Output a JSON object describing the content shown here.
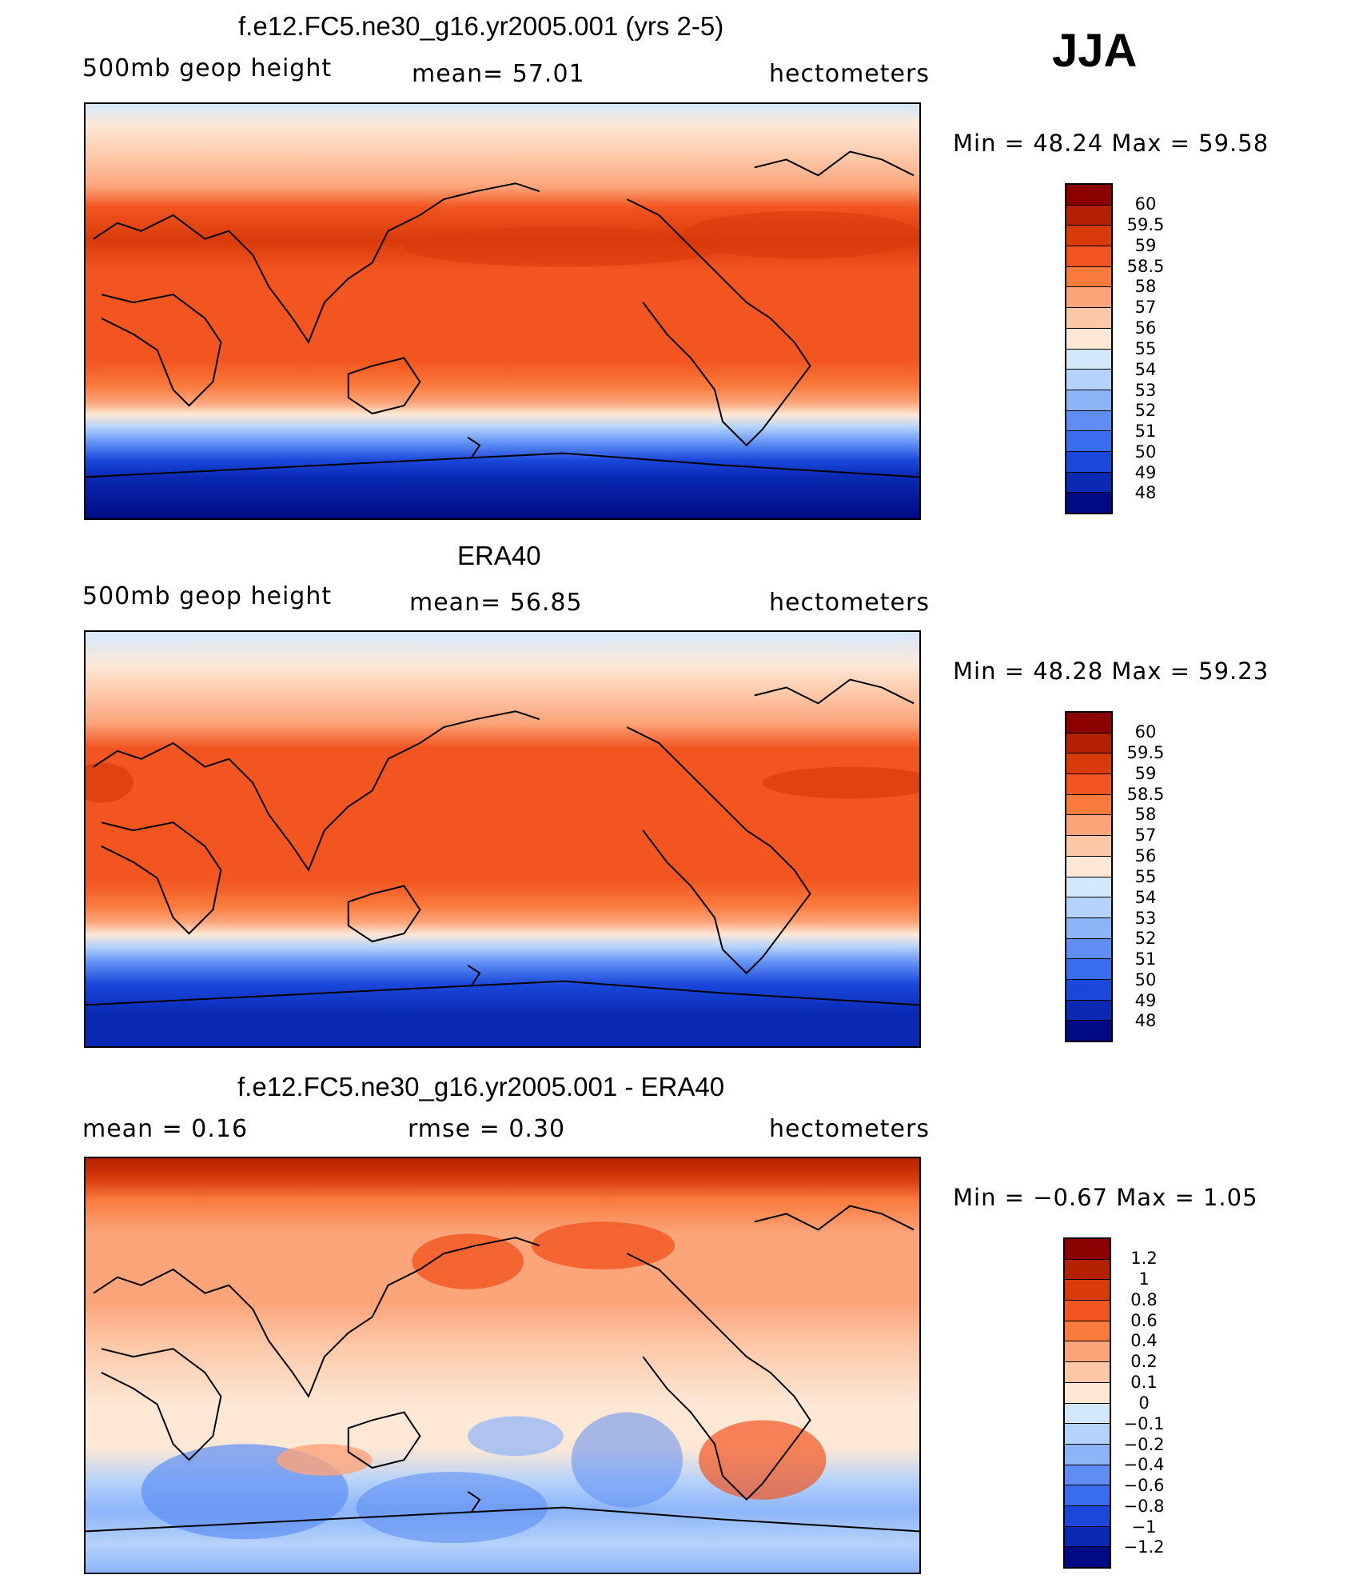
{
  "season": "JJA",
  "panels": [
    {
      "id": "model",
      "title": "f.e12.FC5.ne30_g16.yr2005.001 (yrs 2-5)",
      "left_label": "500mb geop height",
      "center_label": "mean=   57.01",
      "units": "hectometers",
      "minmax": "Min =   48.24  Max =   59.58",
      "colorbar_labels": [
        "60",
        "59.5",
        "59",
        "58.5",
        "58",
        "57",
        "56",
        "55",
        "54",
        "53",
        "52",
        "51",
        "50",
        "49",
        "48"
      ]
    },
    {
      "id": "obs",
      "title": "ERA40",
      "left_label": "500mb geop height",
      "center_label": "mean=   56.85",
      "units": "hectometers",
      "minmax": "Min =   48.28  Max =   59.23",
      "colorbar_labels": [
        "60",
        "59.5",
        "59",
        "58.5",
        "58",
        "57",
        "56",
        "55",
        "54",
        "53",
        "52",
        "51",
        "50",
        "49",
        "48"
      ]
    },
    {
      "id": "diff",
      "title": "f.e12.FC5.ne30_g16.yr2005.001 - ERA40",
      "left_label": "mean =     0.16",
      "center_label": "rmse =     0.30",
      "units": "hectometers",
      "minmax": "Min =   −0.67  Max =      1.05",
      "colorbar_labels": [
        "1.2",
        "1",
        "0.8",
        "0.6",
        "0.4",
        "0.2",
        "0.1",
        "0",
        "−0.1",
        "−0.2",
        "−0.4",
        "−0.6",
        "−0.8",
        "−1",
        "−1.2"
      ]
    }
  ],
  "colorbar_colors": [
    "#8b0000",
    "#b52000",
    "#d83a0a",
    "#f25520",
    "#fa7a3c",
    "#fca47a",
    "#fdc8a8",
    "#fde8d6",
    "#d4e8fc",
    "#b4d2fb",
    "#8cb4f8",
    "#5e8ef4",
    "#3a6cf0",
    "#1a48dc",
    "#0a2ab4",
    "#000a84"
  ],
  "color_scale_model": {
    "colors": [
      "#8b0000",
      "#b52000",
      "#d83a0a",
      "#f25520",
      "#fa7a3c",
      "#fca47a",
      "#fdc8a8",
      "#fde8d6",
      "#d4e8fc",
      "#b4d2fb",
      "#8cb4f8",
      "#5e8ef4",
      "#3a6cf0",
      "#1a48dc",
      "#0a2ab4",
      "#000a84"
    ]
  }
}
